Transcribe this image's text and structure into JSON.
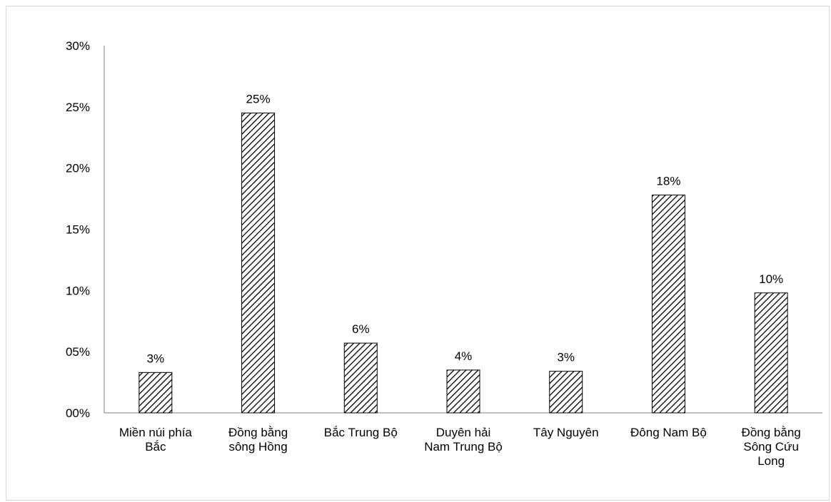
{
  "chart_data": {
    "type": "bar",
    "categories": [
      [
        "Miền núi phía",
        "Bắc"
      ],
      [
        "Đồng bằng",
        "sông Hồng"
      ],
      [
        "Bắc Trung Bộ"
      ],
      [
        "Duyên hải",
        "Nam Trung Bộ"
      ],
      [
        "Tây Nguyên"
      ],
      [
        "Đông Nam Bộ"
      ],
      [
        "Đồng bằng",
        "Sông Cứu",
        "Long"
      ]
    ],
    "values": [
      0.033,
      0.245,
      0.057,
      0.035,
      0.034,
      0.178,
      0.098
    ],
    "data_labels": [
      "3%",
      "25%",
      "6%",
      "4%",
      "3%",
      "18%",
      "10%"
    ],
    "y_ticks": [
      {
        "value": 0.0,
        "label": "00%"
      },
      {
        "value": 0.05,
        "label": "05%"
      },
      {
        "value": 0.1,
        "label": "10%"
      },
      {
        "value": 0.15,
        "label": "15%"
      },
      {
        "value": 0.2,
        "label": "20%"
      },
      {
        "value": 0.25,
        "label": "25%"
      },
      {
        "value": 0.3,
        "label": "30%"
      }
    ],
    "ylim": [
      0,
      0.3
    ],
    "grid": false,
    "bar_pattern": "diagonal-hatch",
    "colors": {
      "bar_stroke": "#000000",
      "hatch": "#000000",
      "axis": "#7f7f7f",
      "frame": "#d9d9d9"
    }
  }
}
